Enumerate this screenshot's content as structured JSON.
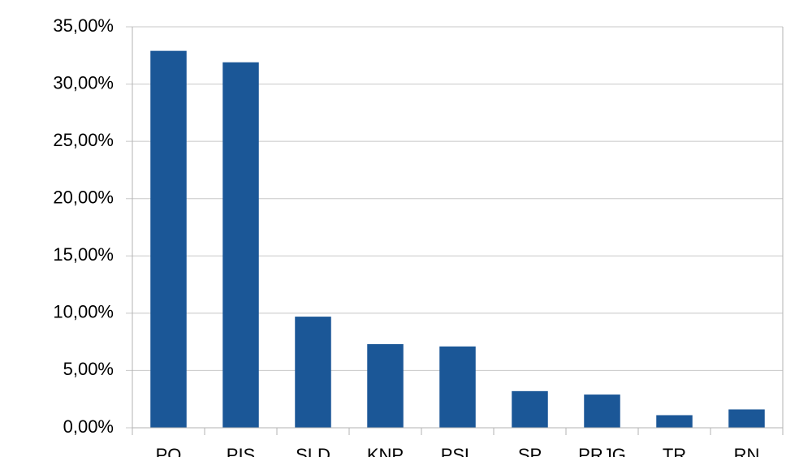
{
  "chart_data": {
    "type": "bar",
    "categories": [
      "PO",
      "PIS",
      "SLD",
      "KNP",
      "PSL",
      "SP",
      "PRJG",
      "TR",
      "RN"
    ],
    "values": [
      32.9,
      31.9,
      9.7,
      7.3,
      7.1,
      3.2,
      2.9,
      1.1,
      1.6
    ],
    "color": "#1b5797",
    "ylim": [
      0,
      35
    ],
    "yticks": [
      {
        "value": 0,
        "label": "0,00%"
      },
      {
        "value": 5,
        "label": "5,00%"
      },
      {
        "value": 10,
        "label": "10,00%"
      },
      {
        "value": 15,
        "label": "15,00%"
      },
      {
        "value": 20,
        "label": "20,00%"
      },
      {
        "value": 25,
        "label": "25,00%"
      },
      {
        "value": 30,
        "label": "30,00%"
      },
      {
        "value": 35,
        "label": "35,00%"
      }
    ],
    "grid": true
  }
}
